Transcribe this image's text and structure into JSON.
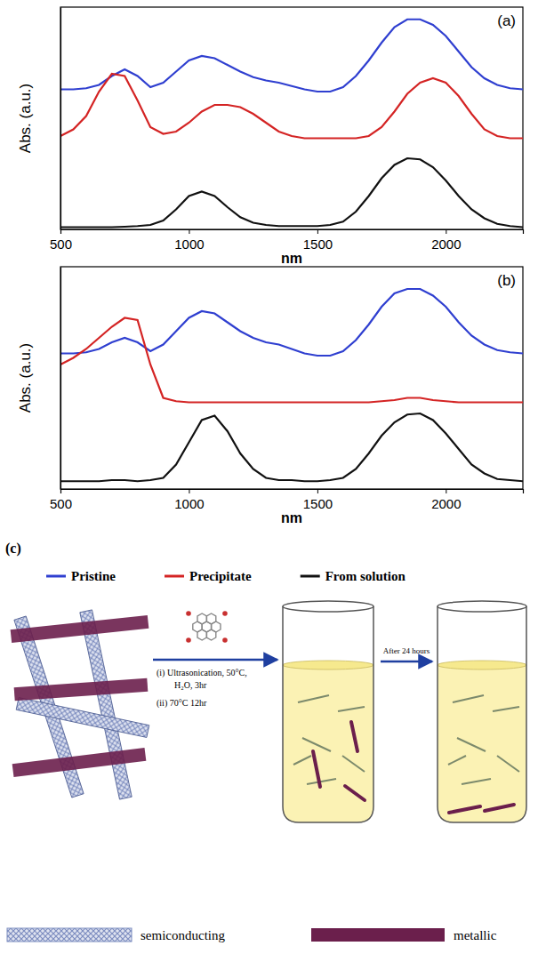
{
  "chart_data": [
    {
      "type": "line",
      "label": "(a)",
      "x_label": "nm",
      "y_label": "Abs. (a.u.)",
      "x": [
        500,
        550,
        600,
        650,
        700,
        750,
        800,
        850,
        900,
        950,
        1000,
        1050,
        1100,
        1150,
        1200,
        1250,
        1300,
        1350,
        1400,
        1450,
        1500,
        1550,
        1600,
        1650,
        1700,
        1750,
        1800,
        1850,
        1900,
        1950,
        2000,
        2050,
        2100,
        2150,
        2200,
        2250,
        2300
      ],
      "xlim": [
        500,
        2300
      ],
      "xticks": [
        500,
        1000,
        1500,
        2000
      ],
      "ylim": [
        0,
        10
      ],
      "tick_labels": "x",
      "series": [
        {
          "name": "Pristine",
          "color": "#2f3fd0",
          "values": [
            6.3,
            6.3,
            6.35,
            6.5,
            6.9,
            7.2,
            6.9,
            6.4,
            6.6,
            7.1,
            7.6,
            7.8,
            7.7,
            7.4,
            7.1,
            6.85,
            6.7,
            6.6,
            6.45,
            6.3,
            6.2,
            6.2,
            6.4,
            6.9,
            7.6,
            8.4,
            9.1,
            9.45,
            9.45,
            9.2,
            8.7,
            8.0,
            7.3,
            6.8,
            6.5,
            6.35,
            6.3
          ]
        },
        {
          "name": "Precipitate",
          "color": "#d42424",
          "values": [
            4.2,
            4.5,
            5.1,
            6.2,
            7.0,
            6.9,
            5.8,
            4.6,
            4.3,
            4.4,
            4.8,
            5.3,
            5.6,
            5.6,
            5.5,
            5.2,
            4.8,
            4.4,
            4.2,
            4.1,
            4.1,
            4.1,
            4.1,
            4.1,
            4.2,
            4.6,
            5.3,
            6.1,
            6.6,
            6.8,
            6.6,
            6.0,
            5.2,
            4.5,
            4.2,
            4.1,
            4.1
          ]
        },
        {
          "name": "From solution",
          "color": "#111111",
          "values": [
            0.1,
            0.1,
            0.1,
            0.1,
            0.1,
            0.12,
            0.15,
            0.2,
            0.4,
            0.9,
            1.5,
            1.7,
            1.5,
            1.0,
            0.55,
            0.3,
            0.2,
            0.15,
            0.15,
            0.15,
            0.15,
            0.2,
            0.35,
            0.8,
            1.5,
            2.3,
            2.9,
            3.2,
            3.15,
            2.8,
            2.2,
            1.5,
            0.9,
            0.5,
            0.25,
            0.15,
            0.1
          ]
        }
      ]
    },
    {
      "type": "line",
      "label": "(b)",
      "x_label": "nm",
      "y_label": "Abs. (a.u.)",
      "x": [
        500,
        550,
        600,
        650,
        700,
        750,
        800,
        850,
        900,
        950,
        1000,
        1050,
        1100,
        1150,
        1200,
        1250,
        1300,
        1350,
        1400,
        1450,
        1500,
        1550,
        1600,
        1650,
        1700,
        1750,
        1800,
        1850,
        1900,
        1950,
        2000,
        2050,
        2100,
        2150,
        2200,
        2250,
        2300
      ],
      "xlim": [
        500,
        2300
      ],
      "xticks": [
        500,
        1000,
        1500,
        2000
      ],
      "ylim": [
        0,
        10
      ],
      "tick_labels": "x",
      "series": [
        {
          "color": "#2f3fd0",
          "values": [
            6.1,
            6.1,
            6.15,
            6.3,
            6.6,
            6.8,
            6.6,
            6.2,
            6.5,
            7.1,
            7.7,
            8.0,
            7.9,
            7.5,
            7.1,
            6.8,
            6.6,
            6.5,
            6.3,
            6.1,
            6.0,
            6.0,
            6.2,
            6.7,
            7.4,
            8.2,
            8.8,
            9.0,
            9.0,
            8.7,
            8.2,
            7.5,
            6.9,
            6.5,
            6.25,
            6.15,
            6.1
          ]
        },
        {
          "color": "#d42424",
          "values": [
            5.6,
            5.9,
            6.3,
            6.8,
            7.3,
            7.7,
            7.6,
            5.6,
            4.1,
            3.95,
            3.9,
            3.9,
            3.9,
            3.9,
            3.9,
            3.9,
            3.9,
            3.9,
            3.9,
            3.9,
            3.9,
            3.9,
            3.9,
            3.9,
            3.9,
            3.95,
            4.0,
            4.1,
            4.1,
            4.0,
            3.95,
            3.9,
            3.9,
            3.9,
            3.9,
            3.9,
            3.9
          ]
        },
        {
          "color": "#111111",
          "values": [
            0.35,
            0.35,
            0.35,
            0.35,
            0.4,
            0.4,
            0.35,
            0.4,
            0.5,
            1.1,
            2.1,
            3.1,
            3.3,
            2.6,
            1.6,
            0.9,
            0.5,
            0.4,
            0.4,
            0.35,
            0.35,
            0.4,
            0.5,
            0.9,
            1.6,
            2.4,
            3.0,
            3.35,
            3.4,
            3.1,
            2.5,
            1.8,
            1.1,
            0.7,
            0.45,
            0.4,
            0.35
          ]
        }
      ]
    }
  ],
  "diagram": {
    "label": "(c)",
    "steps": [
      "(i) Ultrasonication, 50°C,",
      "H₂O, 3hr",
      "(ii) 70°C 12hr"
    ],
    "after": "After 24 hours",
    "key": [
      {
        "label": "semiconducting",
        "color": "#7d8dc0"
      },
      {
        "label": "metallic",
        "color": "#6b1f4c"
      }
    ]
  }
}
